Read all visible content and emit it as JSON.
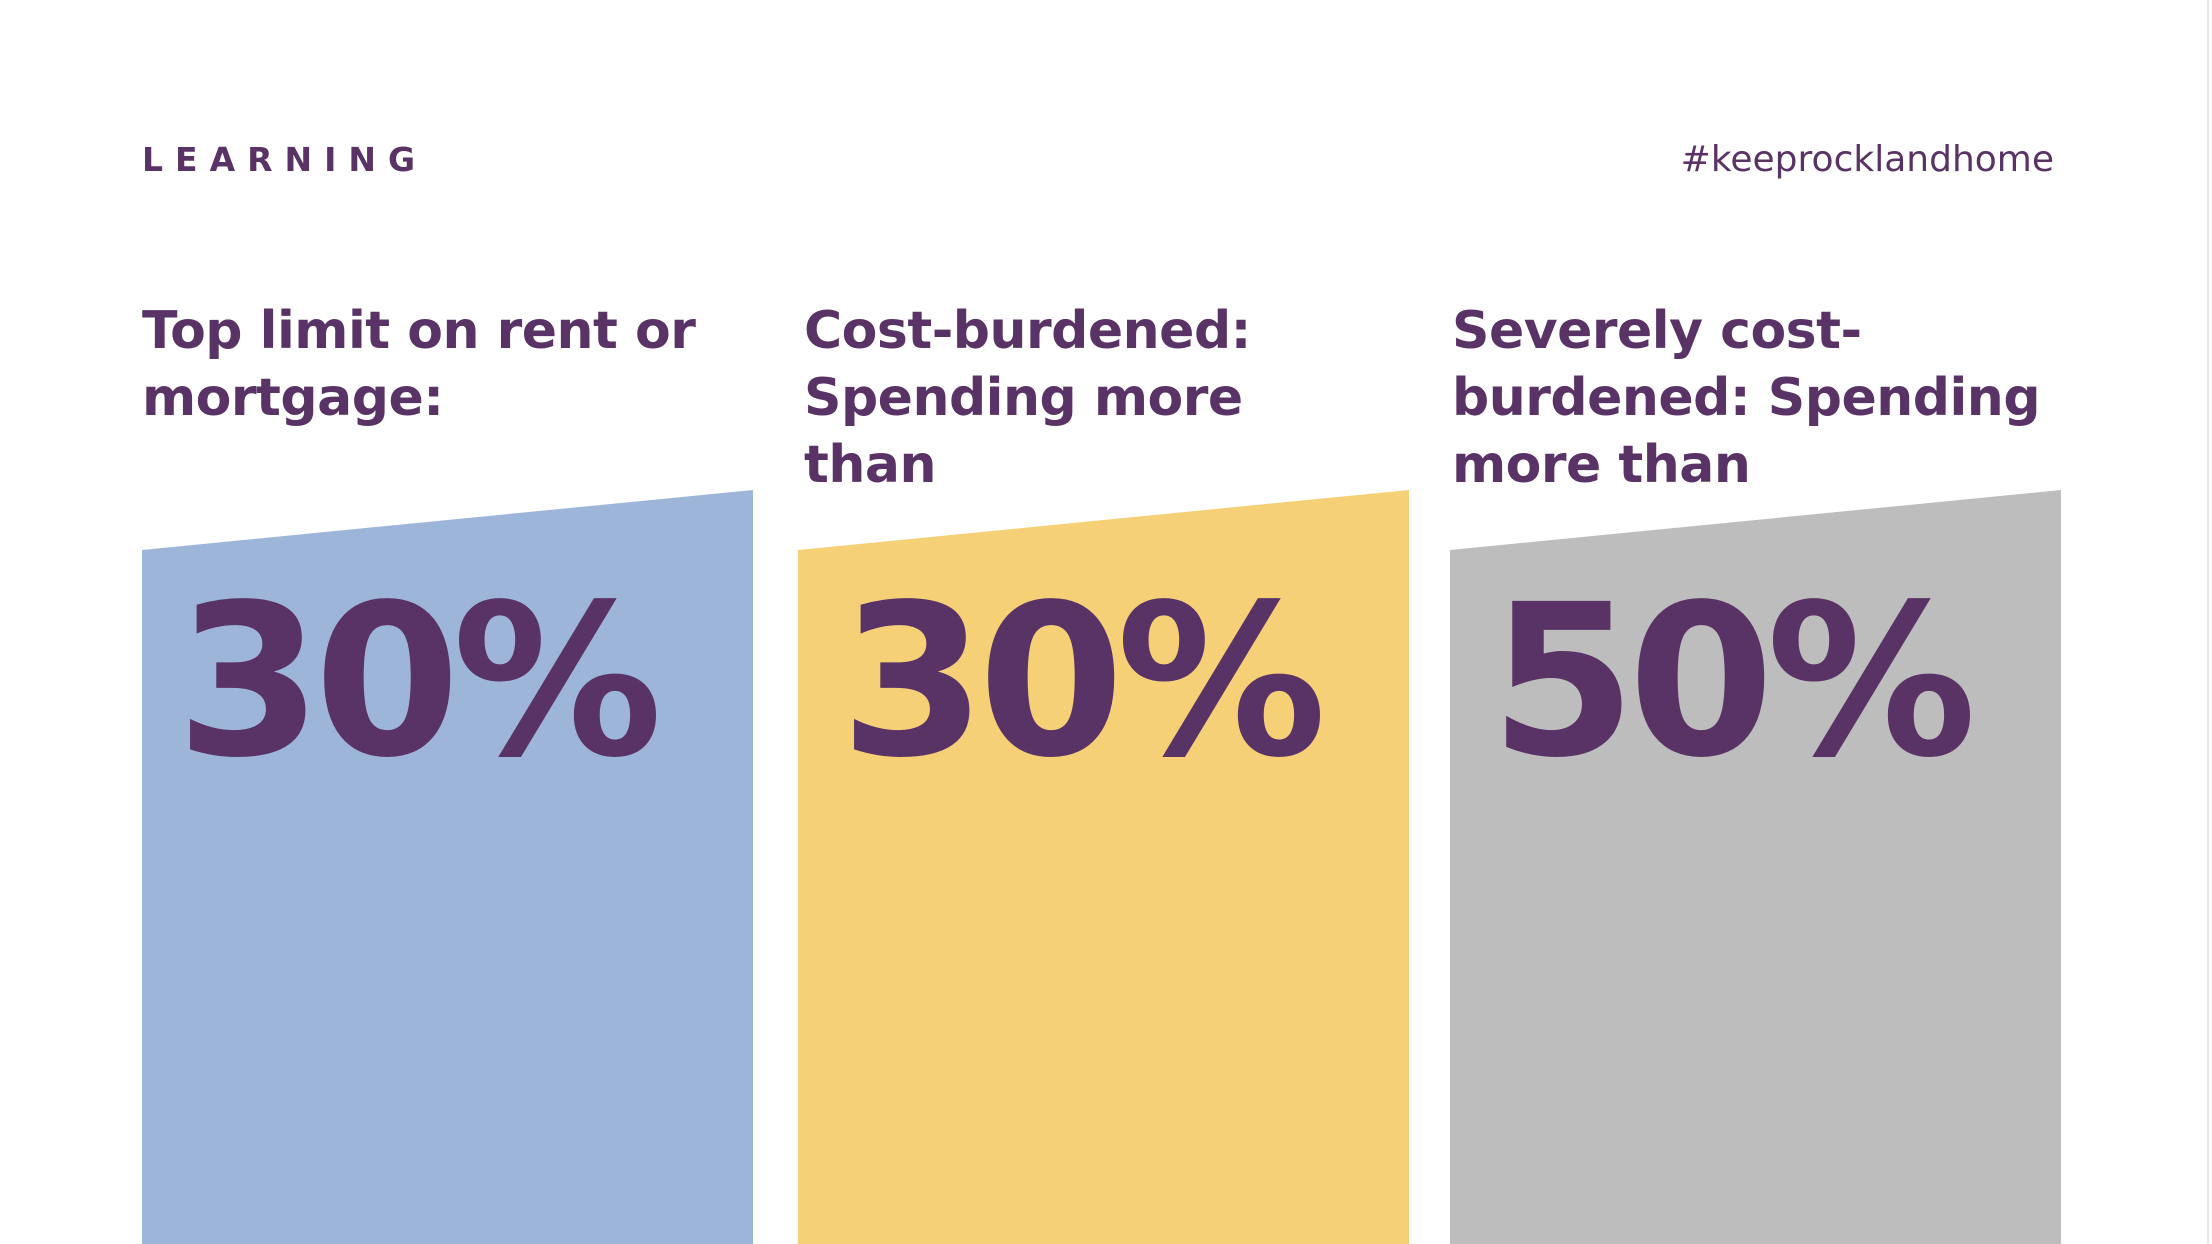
{
  "header": {
    "eyebrow": "LEARNING",
    "hashtag": "#keeprocklandhome"
  },
  "colors": {
    "text": "#5a3366",
    "card_1": "#9db5d9",
    "card_2": "#f5d077",
    "card_3": "#bdbdbd"
  },
  "cards": [
    {
      "heading": "Top limit on rent or mortgage:",
      "value": "30%"
    },
    {
      "heading": "Cost-burdened: Spending more than",
      "value": "30%"
    },
    {
      "heading": "Severely cost-burdened: Spending more than",
      "value": "50%"
    }
  ]
}
